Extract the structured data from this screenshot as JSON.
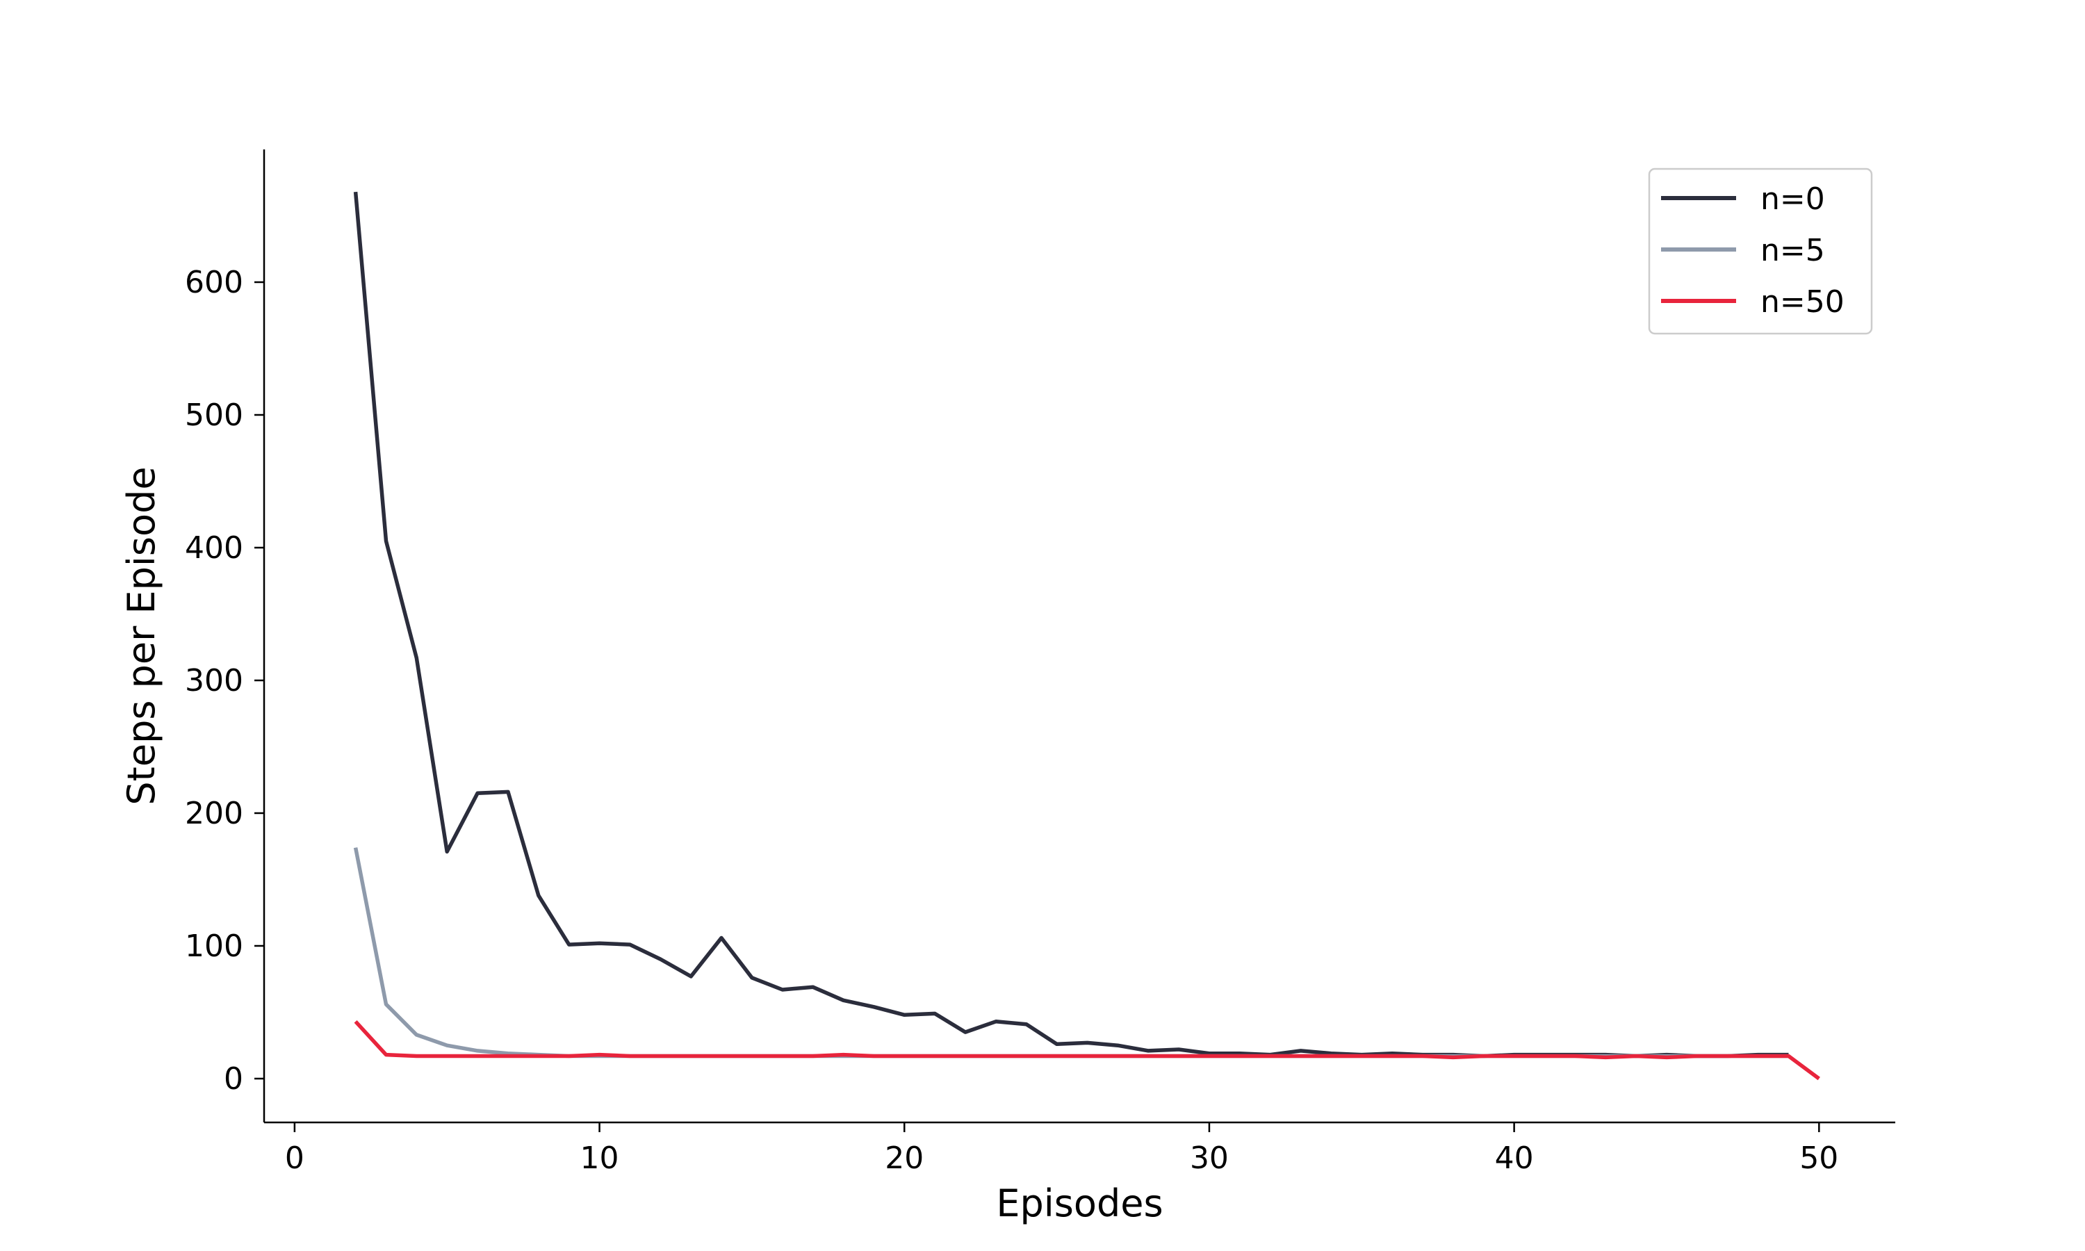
{
  "chart_data": {
    "type": "line",
    "title": "",
    "xlabel": "Episodes",
    "ylabel": "Steps per Episode",
    "xlim": [
      -1,
      52.5
    ],
    "ylim": [
      -33,
      700
    ],
    "xticks": [
      0,
      10,
      20,
      30,
      40,
      50
    ],
    "yticks": [
      0,
      100,
      200,
      300,
      400,
      500,
      600
    ],
    "grid": false,
    "legend_position": "top-right",
    "series": [
      {
        "name": "n=0",
        "color": "#2b2d3c",
        "x": [
          2,
          3,
          4,
          5,
          6,
          7,
          8,
          9,
          10,
          11,
          12,
          13,
          14,
          15,
          16,
          17,
          18,
          19,
          20,
          21,
          22,
          23,
          24,
          25,
          26,
          27,
          28,
          29,
          30,
          31,
          32,
          33,
          34,
          35,
          36,
          37,
          38,
          39,
          40,
          41,
          42,
          43,
          44,
          45,
          46,
          47,
          48,
          49
        ],
        "values": [
          668,
          405,
          317,
          171,
          215,
          216,
          138,
          101,
          102,
          101,
          90,
          77,
          106,
          76,
          67,
          69,
          59,
          54,
          48,
          49,
          35,
          43,
          41,
          26,
          27,
          25,
          21,
          22,
          19,
          19,
          18,
          21,
          19,
          18,
          19,
          18,
          18,
          17,
          18,
          18,
          18,
          18,
          17,
          18,
          17,
          17,
          18,
          18
        ]
      },
      {
        "name": "n=5",
        "color": "#8e9aab",
        "x": [
          2,
          3,
          4,
          5,
          6,
          7,
          8,
          9,
          10,
          11,
          12,
          13,
          14,
          15,
          16,
          17,
          18,
          19,
          20,
          21,
          22,
          23,
          24,
          25,
          26,
          27,
          28,
          29,
          30,
          31,
          32,
          33,
          34,
          35,
          36,
          37,
          38,
          39,
          40,
          41,
          42,
          43,
          44,
          45,
          46,
          47,
          48,
          49
        ],
        "values": [
          174,
          56,
          33,
          25,
          21,
          19,
          18,
          17,
          17,
          17,
          17,
          17,
          17,
          17,
          17,
          17,
          17,
          17,
          17,
          17,
          17,
          17,
          17,
          17,
          17,
          17,
          17,
          17,
          17,
          17,
          17,
          17,
          17,
          17,
          17,
          17,
          17,
          17,
          17,
          17,
          17,
          17,
          17,
          17,
          17,
          17,
          17,
          17
        ]
      },
      {
        "name": "n=50",
        "color": "#e8243c",
        "x": [
          2,
          3,
          4,
          5,
          6,
          7,
          8,
          9,
          10,
          11,
          12,
          13,
          14,
          15,
          16,
          17,
          18,
          19,
          20,
          21,
          22,
          23,
          24,
          25,
          26,
          27,
          28,
          29,
          30,
          31,
          32,
          33,
          34,
          35,
          36,
          37,
          38,
          39,
          40,
          41,
          42,
          43,
          44,
          45,
          46,
          47,
          48,
          49,
          50
        ],
        "values": [
          43,
          18,
          17,
          17,
          17,
          17,
          17,
          17,
          18,
          17,
          17,
          17,
          17,
          17,
          17,
          17,
          18,
          17,
          17,
          17,
          17,
          17,
          17,
          17,
          17,
          17,
          17,
          17,
          17,
          17,
          17,
          17,
          17,
          17,
          17,
          17,
          16,
          17,
          17,
          17,
          17,
          16,
          17,
          16,
          17,
          17,
          17,
          17,
          0
        ]
      }
    ]
  }
}
